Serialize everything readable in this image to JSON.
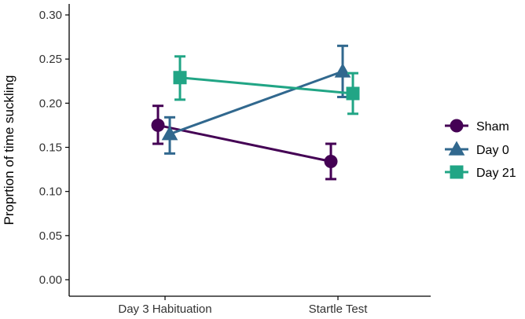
{
  "chart_data": {
    "type": "line",
    "categories": [
      "Day 3 Habituation",
      "Startle Test"
    ],
    "ylabel": "Proprtion of time suckling",
    "xlabel": "",
    "ylim": [
      0,
      0.3
    ],
    "yticks": [
      "0.00",
      "0.05",
      "0.10",
      "0.15",
      "0.20",
      "0.25",
      "0.30"
    ],
    "grid": false,
    "legend_position": "right",
    "series": [
      {
        "name": "Sham",
        "color": "#440154",
        "marker": "circle",
        "values": [
          0.175,
          0.134
        ],
        "err_low": [
          0.154,
          0.114
        ],
        "err_high": [
          0.197,
          0.154
        ]
      },
      {
        "name": "Day 0",
        "color": "#31688e",
        "marker": "triangle",
        "values": [
          0.165,
          0.236
        ],
        "err_low": [
          0.143,
          0.207
        ],
        "err_high": [
          0.184,
          0.265
        ]
      },
      {
        "name": "Day 21",
        "color": "#21a585",
        "marker": "square",
        "values": [
          0.229,
          0.211
        ],
        "err_low": [
          0.204,
          0.188
        ],
        "err_high": [
          0.253,
          0.234
        ]
      }
    ]
  }
}
